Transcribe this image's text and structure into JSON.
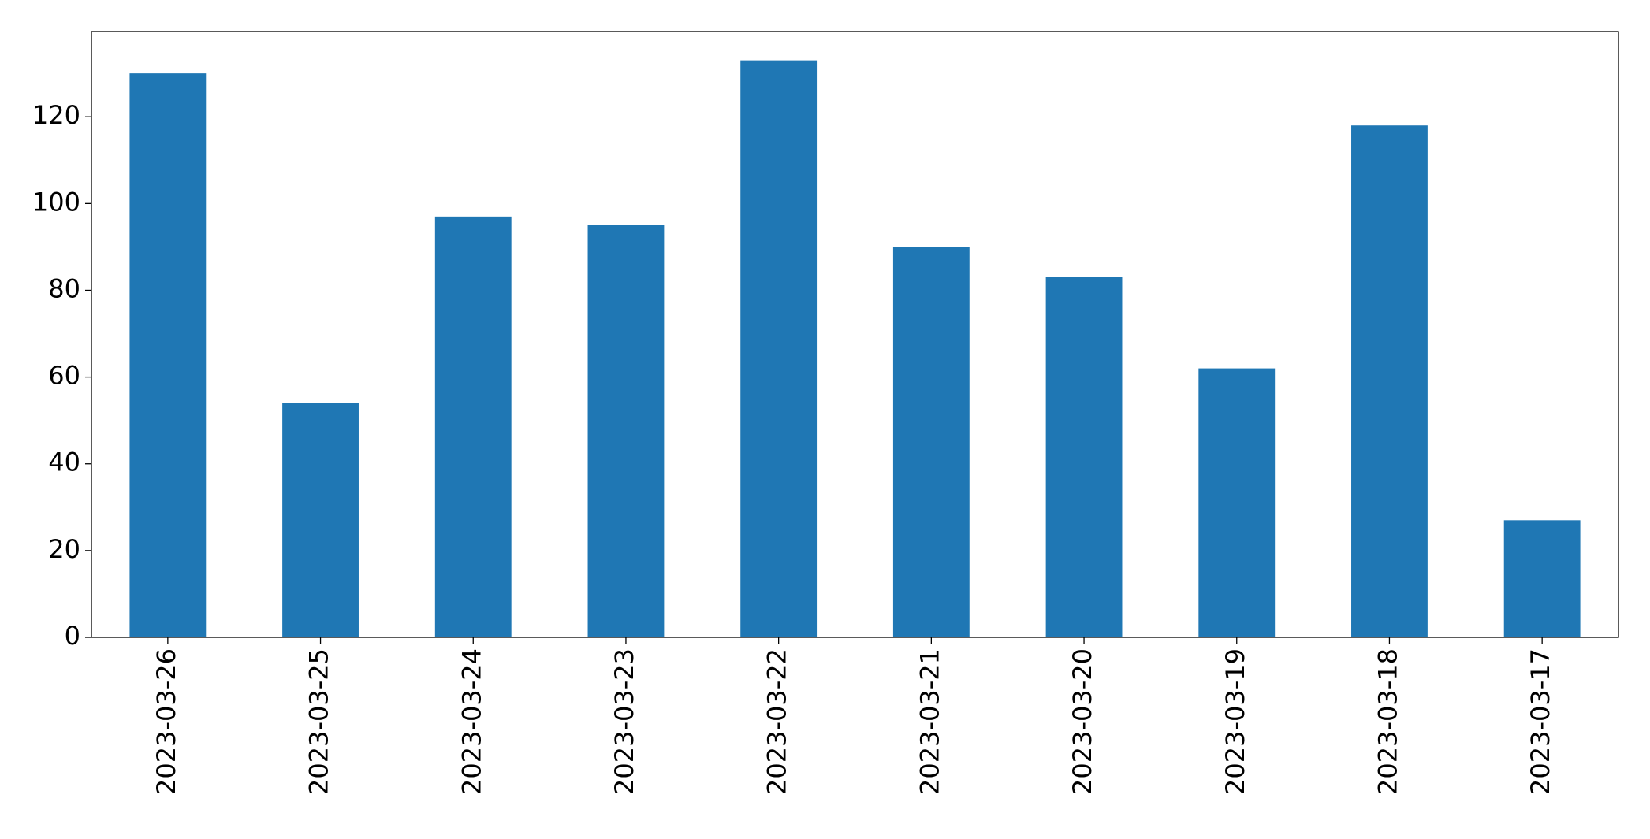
{
  "chart_data": {
    "type": "bar",
    "categories": [
      "2023-03-26",
      "2023-03-25",
      "2023-03-24",
      "2023-03-23",
      "2023-03-22",
      "2023-03-21",
      "2023-03-20",
      "2023-03-19",
      "2023-03-18",
      "2023-03-17"
    ],
    "values": [
      130,
      54,
      97,
      95,
      133,
      90,
      83,
      62,
      118,
      27
    ],
    "color": "#1f77b4",
    "ylim": [
      0,
      139.65
    ],
    "yticks": [
      0,
      20,
      40,
      60,
      80,
      100,
      120
    ],
    "grid": false
  }
}
